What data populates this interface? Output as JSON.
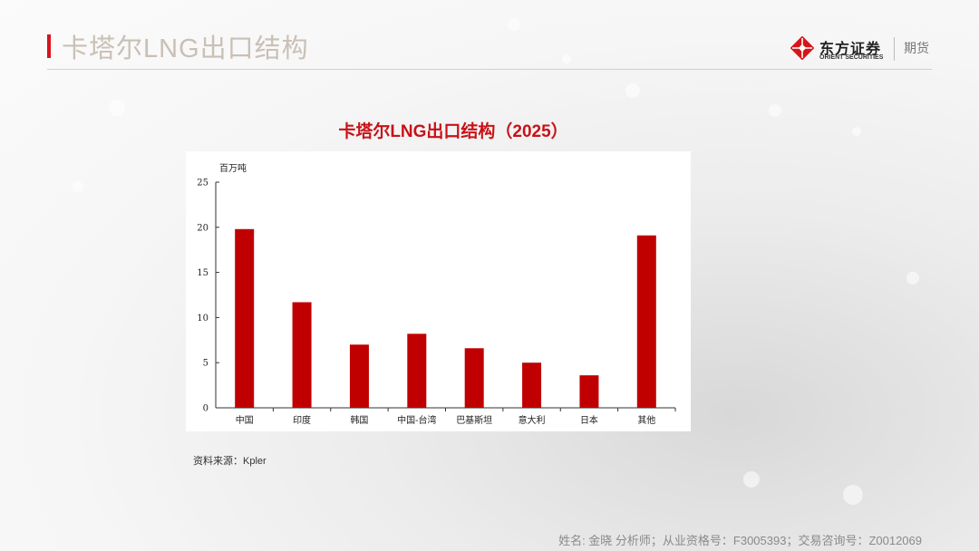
{
  "slide": {
    "title": "卡塔尔LNG出口结构"
  },
  "logo": {
    "name_cn": "东方证券",
    "name_en": "ORIENT SECURITIES",
    "division": "期货"
  },
  "chart_data": {
    "type": "bar",
    "title": "卡塔尔LNG出口结构（2025）",
    "ylabel": "百万吨",
    "xlabel": "",
    "categories": [
      "中国",
      "印度",
      "韩国",
      "中国-台湾",
      "巴基斯坦",
      "意大利",
      "日本",
      "其他"
    ],
    "values": [
      19.8,
      11.7,
      7.0,
      8.2,
      6.6,
      5.0,
      3.6,
      19.1
    ],
    "ylim": [
      0,
      25
    ],
    "yticks": [
      "0",
      "5",
      "10",
      "15",
      "20",
      "25"
    ],
    "bar_color": "#c00000",
    "grid": false,
    "legend": "none"
  },
  "source": "资料来源：Kpler",
  "footer": "姓名: 金晓 分析师；从业资格号：F3005393；交易咨询号：Z0012069"
}
